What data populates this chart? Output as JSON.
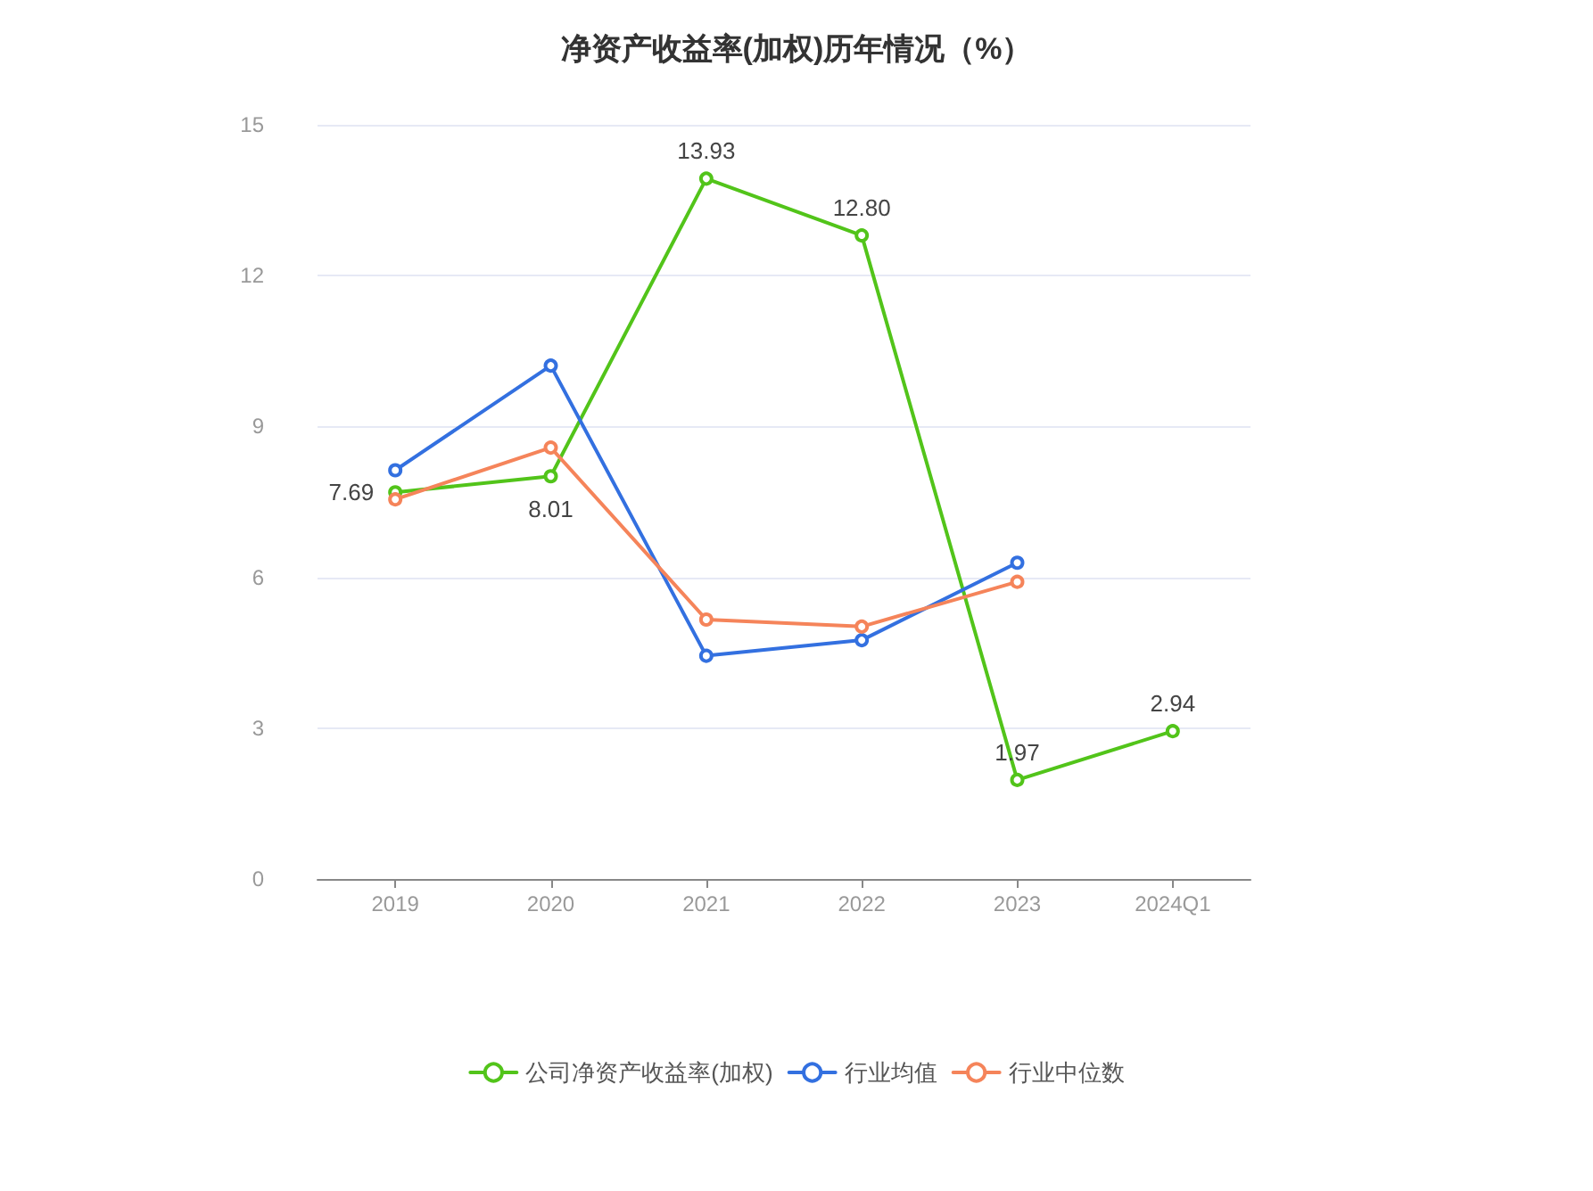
{
  "chart_data": {
    "type": "line",
    "title": "净资产收益率(加权)历年情况（%）",
    "categories": [
      "2019",
      "2020",
      "2021",
      "2022",
      "2023",
      "2024Q1"
    ],
    "series": [
      {
        "name": "公司净资产收益率(加权)",
        "color": "#52c41a",
        "values": [
          7.69,
          8.01,
          13.93,
          12.8,
          1.97,
          2.94
        ],
        "value_labels": [
          "7.69",
          "8.01",
          "13.93",
          "12.80",
          "1.97",
          "2.94"
        ]
      },
      {
        "name": "行业均值",
        "color": "#3370e0",
        "values": [
          8.13,
          10.21,
          4.44,
          4.75,
          6.29,
          null
        ]
      },
      {
        "name": "行业中位数",
        "color": "#f5845a",
        "values": [
          7.55,
          8.58,
          5.16,
          5.02,
          5.91,
          null
        ]
      }
    ],
    "ylim": [
      0,
      15
    ],
    "yticks": [
      0,
      3,
      6,
      9,
      12,
      15
    ],
    "grid": "y",
    "legend": "bottom",
    "marker": "circle",
    "line_style": "solid"
  }
}
